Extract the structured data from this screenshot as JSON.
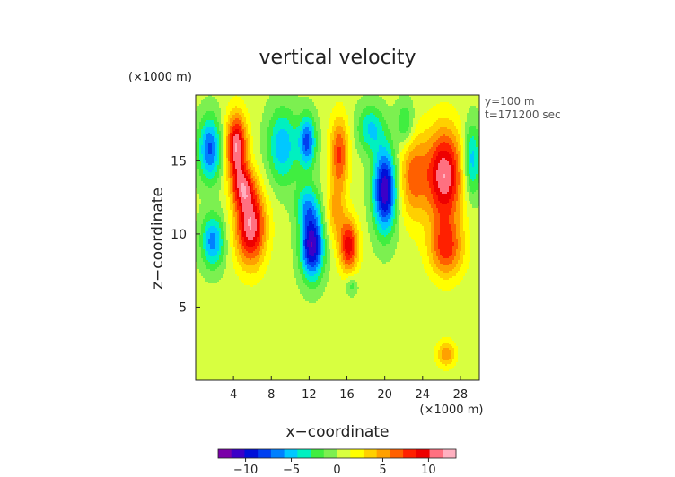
{
  "chart_data": {
    "type": "heatmap",
    "title": "vertical velocity",
    "xlabel": "x−coordinate",
    "ylabel": "z−coordinate",
    "x_unit": "(×1000 m)",
    "y_unit": "(×1000 m)",
    "xlim": [
      0,
      30
    ],
    "ylim": [
      0,
      19.5
    ],
    "x_ticks": [
      4,
      8,
      12,
      16,
      20,
      24,
      28
    ],
    "x_tick_labels": [
      "4",
      "8",
      "12",
      "16",
      "20",
      "24",
      "28"
    ],
    "y_ticks": [
      5,
      10,
      15
    ],
    "y_tick_labels": [
      "5",
      "10",
      "15"
    ],
    "annotations": [
      "y=100 m",
      "t=171200 sec"
    ],
    "colorbar": {
      "range": [
        -13,
        13
      ],
      "ticks": [
        -10,
        -5,
        0,
        5,
        10
      ],
      "tick_labels": [
        "−10",
        "−5",
        "0",
        "5",
        "10"
      ],
      "colors": [
        "#7a00a8",
        "#3b00c8",
        "#0010d8",
        "#0040f0",
        "#0080ff",
        "#00c8ff",
        "#00f0c0",
        "#40ee40",
        "#7cf050",
        "#d8ff40",
        "#ffff00",
        "#ffd000",
        "#ffa000",
        "#ff6000",
        "#ff2000",
        "#ee0000",
        "#ff7080",
        "#ffb0c0"
      ]
    },
    "grid": false,
    "background_value": 0.5,
    "features": [
      {
        "x": 1.5,
        "z": 15.8,
        "value": -8,
        "sx": 1.2,
        "sz": 2.2
      },
      {
        "x": 1.8,
        "z": 9.5,
        "value": -7,
        "sx": 1.2,
        "sz": 1.8
      },
      {
        "x": 4.3,
        "z": 16.0,
        "value": 11,
        "sx": 1.1,
        "sz": 2.2
      },
      {
        "x": 5.8,
        "z": 10.5,
        "value": 11,
        "sx": 1.6,
        "sz": 2.6
      },
      {
        "x": 5.0,
        "z": 13.2,
        "value": 7,
        "sx": 1.2,
        "sz": 1.5
      },
      {
        "x": 9.2,
        "z": 16.0,
        "value": -6,
        "sx": 1.6,
        "sz": 2.6
      },
      {
        "x": 11.8,
        "z": 16.3,
        "value": -8,
        "sx": 0.9,
        "sz": 1.8
      },
      {
        "x": 12.3,
        "z": 9.2,
        "value": -12,
        "sx": 1.2,
        "sz": 2.2
      },
      {
        "x": 11.8,
        "z": 12.0,
        "value": -5,
        "sx": 1.2,
        "sz": 1.5
      },
      {
        "x": 15.2,
        "z": 15.5,
        "value": 7,
        "sx": 1.0,
        "sz": 2.5
      },
      {
        "x": 14.8,
        "z": 11.5,
        "value": 4,
        "sx": 1.0,
        "sz": 2.0
      },
      {
        "x": 16.2,
        "z": 9.2,
        "value": 9,
        "sx": 1.0,
        "sz": 1.8
      },
      {
        "x": 18.5,
        "z": 17.2,
        "value": -5,
        "sx": 1.4,
        "sz": 1.6
      },
      {
        "x": 20.0,
        "z": 13.0,
        "value": -12,
        "sx": 1.2,
        "sz": 2.8
      },
      {
        "x": 16.5,
        "z": 6.5,
        "value": -3,
        "sx": 0.6,
        "sz": 0.7
      },
      {
        "x": 23.0,
        "z": 14.0,
        "value": 6,
        "sx": 1.5,
        "sz": 3.0
      },
      {
        "x": 26.3,
        "z": 14.0,
        "value": 11,
        "sx": 1.9,
        "sz": 3.2
      },
      {
        "x": 26.5,
        "z": 9.0,
        "value": 7,
        "sx": 1.8,
        "sz": 2.0
      },
      {
        "x": 29.2,
        "z": 15.0,
        "value": -6,
        "sx": 0.9,
        "sz": 2.5
      },
      {
        "x": 22.2,
        "z": 17.5,
        "value": -4,
        "sx": 1.0,
        "sz": 1.6
      },
      {
        "x": 26.5,
        "z": 1.8,
        "value": 5,
        "sx": 1.0,
        "sz": 0.9
      }
    ]
  }
}
